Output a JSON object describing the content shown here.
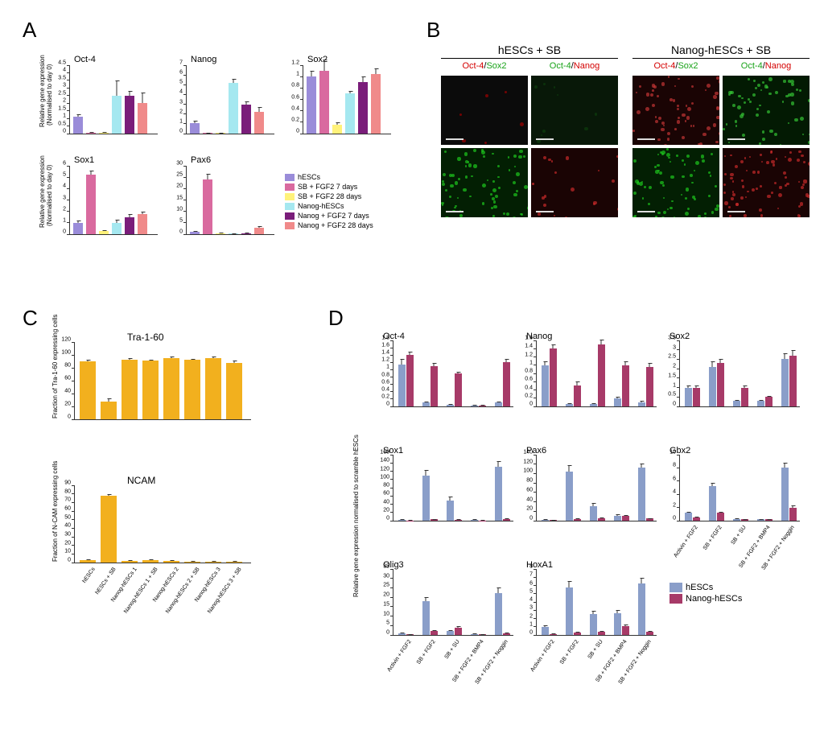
{
  "panelLabels": {
    "A": "A",
    "B": "B",
    "C": "C",
    "D": "D"
  },
  "A": {
    "ylabel": "Relative gene expression\n(Normalised to day 0)",
    "colors": [
      "#9a8cd9",
      "#d96a9f",
      "#fff27a",
      "#a5e8f0",
      "#7a1d7a",
      "#f08a8a"
    ],
    "charts": [
      {
        "title": "Oct-4",
        "ymax": 4.5,
        "ystep": 0.5,
        "values": [
          1.1,
          0.05,
          0.05,
          2.5,
          2.5,
          2.0
        ],
        "err": [
          0.15,
          0.05,
          0.05,
          1.0,
          0.3,
          0.7
        ]
      },
      {
        "title": "Nanog",
        "ymax": 7,
        "ystep": 1,
        "values": [
          1.1,
          0.05,
          0.05,
          5.2,
          3.0,
          2.2
        ],
        "err": [
          0.2,
          0.05,
          0.05,
          0.4,
          0.3,
          0.5
        ]
      },
      {
        "title": "Sox2",
        "ymax": 1.2,
        "ystep": 0.2,
        "values": [
          1.0,
          1.1,
          0.15,
          0.7,
          0.9,
          1.05
        ],
        "err": [
          0.1,
          0.2,
          0.05,
          0.05,
          0.1,
          0.1
        ]
      },
      {
        "title": "Sox1",
        "ymax": 6,
        "ystep": 1,
        "values": [
          1.0,
          5.2,
          0.3,
          1.0,
          1.5,
          1.8
        ],
        "err": [
          0.2,
          0.4,
          0.05,
          0.3,
          0.3,
          0.2
        ]
      },
      {
        "title": "Pax6",
        "ymax": 30,
        "ystep": 5,
        "values": [
          1.0,
          24,
          0.5,
          0.3,
          0.4,
          3.0
        ],
        "err": [
          0.3,
          2.5,
          0.2,
          0.2,
          0.2,
          0.6
        ]
      }
    ],
    "legend": [
      "hESCs",
      "SB + FGF2 7 days",
      "SB + FGF2 28 days",
      "Nanog-hESCs",
      "Nanog + FGF2 7 days",
      "Nanog + FGF2 28 days"
    ]
  },
  "B": {
    "headers": [
      "hESCs + SB",
      "Nanog-hESCs + SB"
    ],
    "sublabels": [
      {
        "parts": [
          {
            "t": "Oct-4",
            "c": "#d40000"
          },
          {
            "t": "/",
            "c": "#000"
          },
          {
            "t": "Sox2",
            "c": "#19a319"
          }
        ]
      },
      {
        "parts": [
          {
            "t": "Oct-4",
            "c": "#19a319"
          },
          {
            "t": "/",
            "c": "#000"
          },
          {
            "t": "Nanog",
            "c": "#d40000"
          }
        ]
      },
      {
        "parts": [
          {
            "t": "Oct-4",
            "c": "#d40000"
          },
          {
            "t": "/",
            "c": "#000"
          },
          {
            "t": "Sox2",
            "c": "#19a319"
          }
        ]
      },
      {
        "parts": [
          {
            "t": "Oct-4",
            "c": "#19a319"
          },
          {
            "t": "/",
            "c": "#000"
          },
          {
            "t": "Nanog",
            "c": "#d40000"
          }
        ]
      }
    ],
    "cells": [
      {
        "base": "#0b0b0b",
        "fg": "#a00000",
        "amt": 6
      },
      {
        "base": "#081808",
        "fg": "#0d3d0d",
        "amt": 10
      },
      {
        "base": "#1a0404",
        "fg": "#c33434",
        "amt": 60
      },
      {
        "base": "#031a03",
        "fg": "#34c334",
        "amt": 60
      },
      {
        "base": "#031f03",
        "fg": "#1ec71e",
        "amt": 70
      },
      {
        "base": "#1a0404",
        "fg": "#c72a2a",
        "amt": 20
      },
      {
        "base": "#031f03",
        "fg": "#1ec71e",
        "amt": 70
      },
      {
        "base": "#1a0404",
        "fg": "#c72a2a",
        "amt": 70
      }
    ]
  },
  "C": {
    "xlabels": [
      "hESCs",
      "hESCs + SB",
      "Nanog-hESCs 1",
      "Nanog-hESCs 1 + SB",
      "Nanog-hESCs 2",
      "Nanog-hESCs 2 + SB",
      "Nanog-hESCs 3",
      "Nanog-hESCs 3 + SB"
    ],
    "bar_color": "#f2b01e",
    "charts": [
      {
        "title": "Tra-1-60",
        "ylabel": "Fraction of Tra-1-60 expressing cells",
        "ymax": 120,
        "ystep": 20,
        "values": [
          90,
          28,
          92,
          91,
          95,
          92,
          95,
          88
        ],
        "err": [
          2,
          4,
          3,
          2,
          3,
          2,
          3,
          3
        ]
      },
      {
        "title": "NCAM",
        "ylabel": "Fraction of N-CAM expressing cells",
        "ymax": 90,
        "ystep": 10,
        "values": [
          3,
          78,
          2,
          3,
          2,
          1,
          1,
          1
        ],
        "err": [
          1,
          2,
          1,
          1,
          1,
          0.5,
          0.5,
          0.5
        ]
      }
    ]
  },
  "D": {
    "ylabel": "Relative gene expression normalised to scramble hESCs",
    "xlabels": [
      "Activin + FGF2",
      "SB + FGF2",
      "SB + SU",
      "SB + FGF2 + BMP4",
      "SB + FGF2 + Noggin"
    ],
    "colors": [
      "#8a9ec9",
      "#a73a68"
    ],
    "legend": [
      "hESCs",
      "Nanog-hESCs"
    ],
    "charts": [
      {
        "title": "Oct-4",
        "ymax": 1.8,
        "ystep": 0.2,
        "hescs": [
          1.15,
          0.1,
          0.05,
          0.03,
          0.1
        ],
        "nanog": [
          1.4,
          1.1,
          0.9,
          0.03,
          1.2
        ],
        "err_h": [
          0.15,
          0.03,
          0.02,
          0.01,
          0.04
        ],
        "err_n": [
          0.1,
          0.08,
          0.04,
          0.01,
          0.1
        ]
      },
      {
        "title": "Nanog",
        "ymax": 1.6,
        "ystep": 0.2,
        "hescs": [
          1.0,
          0.05,
          0.05,
          0.2,
          0.1
        ],
        "nanog": [
          1.4,
          0.5,
          1.5,
          1.0,
          0.95
        ],
        "err_h": [
          0.1,
          0.02,
          0.02,
          0.04,
          0.03
        ],
        "err_n": [
          0.1,
          0.1,
          0.12,
          0.1,
          0.1
        ]
      },
      {
        "title": "Sox2",
        "ymax": 3.5,
        "ystep": 0.5,
        "hescs": [
          1.0,
          2.1,
          0.3,
          0.3,
          2.5
        ],
        "nanog": [
          1.0,
          2.3,
          1.0,
          0.5,
          2.7
        ],
        "err_h": [
          0.1,
          0.3,
          0.05,
          0.05,
          0.3
        ],
        "err_n": [
          0.1,
          0.2,
          0.1,
          0.05,
          0.3
        ]
      },
      {
        "title": "Sox1",
        "ymax": 160,
        "ystep": 20,
        "hescs": [
          2,
          110,
          48,
          2,
          130
        ],
        "nanog": [
          1,
          3,
          2,
          1,
          4
        ],
        "err_h": [
          1,
          12,
          10,
          1,
          15
        ],
        "err_n": [
          0.5,
          1,
          1,
          0.5,
          1
        ]
      },
      {
        "title": "Pax6",
        "ymax": 140,
        "ystep": 20,
        "hescs": [
          2,
          105,
          30,
          10,
          112
        ],
        "nanog": [
          1,
          4,
          6,
          10,
          5
        ],
        "err_h": [
          1,
          12,
          8,
          3,
          10
        ],
        "err_n": [
          0.5,
          1,
          1.5,
          2,
          1
        ]
      },
      {
        "title": "Gbx2",
        "ymax": 10,
        "ystep": 2,
        "hescs": [
          1.2,
          5.2,
          0.3,
          0.2,
          8.0
        ],
        "nanog": [
          0.5,
          1.2,
          0.2,
          0.2,
          2.0
        ],
        "err_h": [
          0.2,
          0.5,
          0.1,
          0.1,
          0.8
        ],
        "err_n": [
          0.1,
          0.2,
          0.05,
          0.05,
          0.3
        ]
      },
      {
        "title": "Olig3",
        "ymax": 35,
        "ystep": 5,
        "hescs": [
          1,
          18,
          2,
          0.5,
          22
        ],
        "nanog": [
          0.3,
          2,
          4,
          0.3,
          1
        ],
        "err_h": [
          0.3,
          2,
          0.5,
          0.2,
          3
        ],
        "err_n": [
          0.1,
          0.5,
          0.5,
          0.1,
          0.3
        ]
      },
      {
        "title": "HoxA1",
        "ymax": 8,
        "ystep": 1,
        "hescs": [
          1,
          5.8,
          2.5,
          2.6,
          6.2
        ],
        "nanog": [
          0.1,
          0.3,
          0.4,
          1.1,
          0.4
        ],
        "err_h": [
          0.2,
          0.7,
          0.4,
          0.4,
          0.7
        ],
        "err_n": [
          0.05,
          0.1,
          0.1,
          0.2,
          0.1
        ]
      }
    ]
  }
}
